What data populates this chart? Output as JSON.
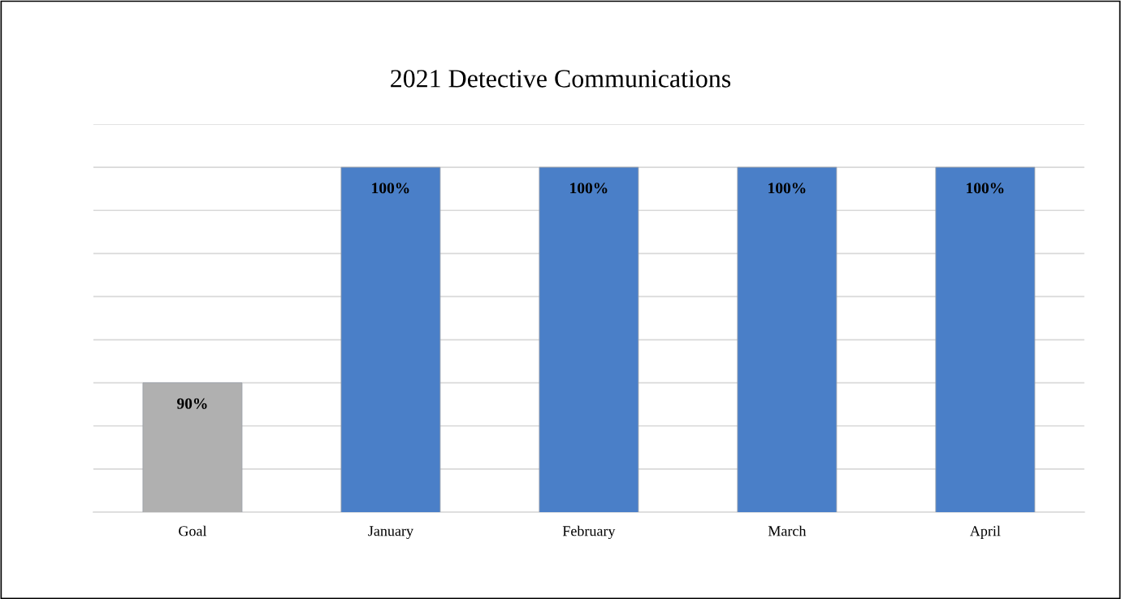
{
  "chart_data": {
    "type": "bar",
    "title": "2021 Detective Communications",
    "categories": [
      "Goal",
      "January",
      "February",
      "March",
      "April"
    ],
    "values": [
      90,
      100,
      100,
      100,
      100
    ],
    "colors": [
      "#b0b0b0",
      "#4a7fc8",
      "#4a7fc8",
      "#4a7fc8",
      "#4a7fc8"
    ],
    "value_labels": [
      "90%",
      "100%",
      "100%",
      "100%",
      "100%"
    ],
    "ylim": [
      84,
      102
    ],
    "yticks": [
      {
        "value": 84,
        "label": null
      },
      {
        "value": 86,
        "label": null
      },
      {
        "value": 88,
        "label": null
      },
      {
        "value": 90,
        "label": null
      },
      {
        "value": 92,
        "label": null
      },
      {
        "value": 94,
        "label": null
      },
      {
        "value": 96,
        "label": null
      },
      {
        "value": 98,
        "label": null
      },
      {
        "value": 100,
        "label": null
      },
      {
        "value": 102,
        "label": null
      }
    ],
    "tick_labels": "x",
    "grid": "y",
    "legend": false
  }
}
